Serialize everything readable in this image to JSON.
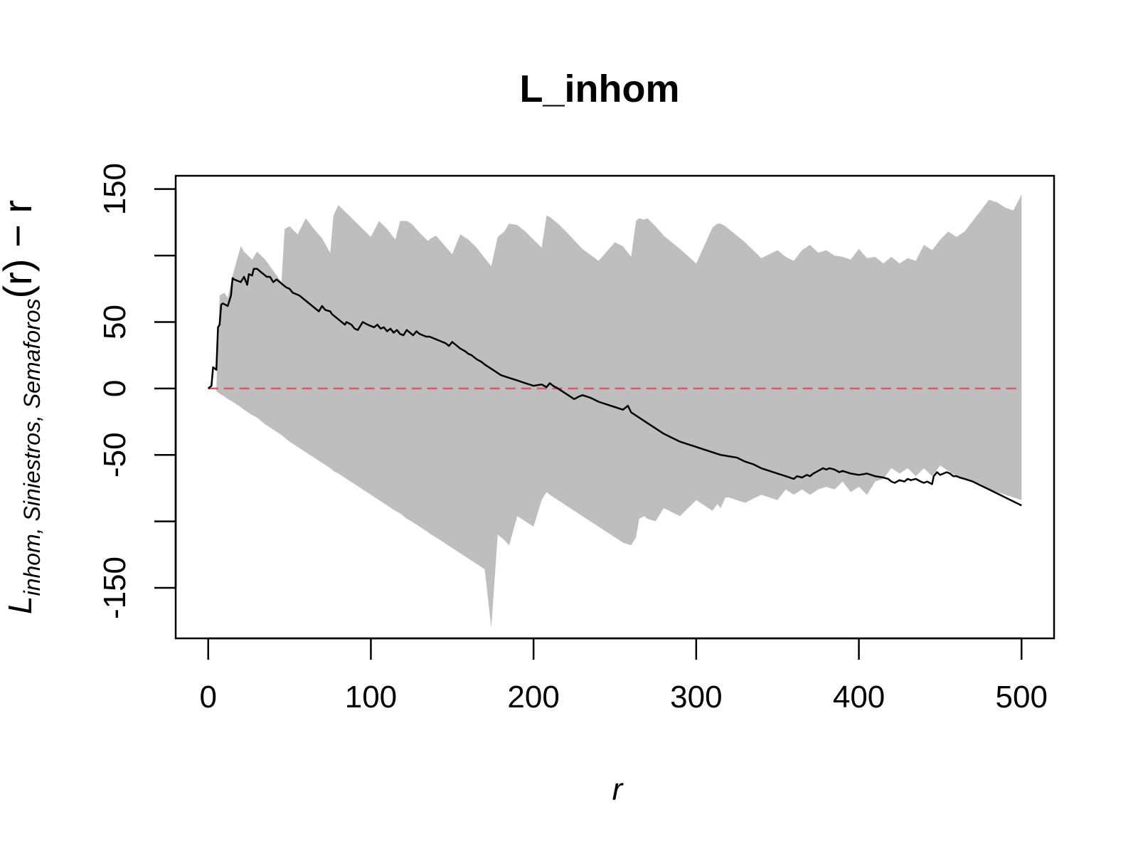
{
  "chart_data": {
    "type": "line",
    "title": "L_inhom",
    "xlabel": "r",
    "ylabel": {
      "main": "L",
      "subscript": "inhom, Siniestros, Semaforos",
      "suffix": "(r) − r"
    },
    "xlim": [
      -20,
      520
    ],
    "ylim": [
      -188,
      160
    ],
    "x_ticks": [
      0,
      100,
      200,
      300,
      400,
      500
    ],
    "x_tick_labels": [
      "0",
      "100",
      "200",
      "300",
      "400",
      "500"
    ],
    "y_ticks": [
      -150,
      -100,
      -50,
      0,
      50,
      100,
      150
    ],
    "y_tick_labels": [
      "-150",
      "",
      "-50",
      "0",
      "50",
      "",
      "150"
    ],
    "grid": false,
    "series": [
      {
        "role": "envelope",
        "color": "#bebebe",
        "x": [
          5,
          7,
          10,
          12,
          15,
          20,
          22,
          27,
          30,
          35,
          45,
          47,
          50,
          55,
          60,
          65,
          70,
          75,
          77,
          80,
          90,
          100,
          105,
          110,
          115,
          118,
          122,
          125,
          130,
          135,
          137,
          140,
          145,
          150,
          155,
          160,
          165,
          170,
          174,
          178,
          182,
          185,
          190,
          195,
          200,
          205,
          208,
          210,
          215,
          220,
          230,
          240,
          250,
          255,
          260,
          263,
          265,
          268,
          270,
          275,
          280,
          290,
          300,
          310,
          313,
          315,
          318,
          320,
          330,
          340,
          350,
          355,
          360,
          365,
          370,
          375,
          380,
          385,
          390,
          395,
          400,
          405,
          410,
          415,
          420,
          425,
          430,
          435,
          440,
          445,
          450,
          455,
          460,
          465,
          470,
          475,
          480,
          485,
          490,
          495,
          500
        ],
        "upper": [
          0,
          70,
          72,
          68,
          85,
          107,
          103,
          97,
          103,
          97,
          80,
          120,
          122,
          116,
          128,
          120,
          113,
          102,
          130,
          138,
          126,
          114,
          126,
          120,
          112,
          126,
          126,
          124,
          117,
          111,
          113,
          115,
          108,
          101,
          116,
          112,
          106,
          98,
          92,
          114,
          118,
          124,
          123,
          118,
          112,
          106,
          130,
          129,
          124,
          118,
          105,
          96,
          110,
          107,
          99,
          126,
          128,
          127,
          128,
          122,
          115,
          105,
          94,
          121,
          124,
          124,
          122,
          120,
          110,
          98,
          104,
          99,
          96,
          104,
          108,
          102,
          104,
          100,
          99,
          97,
          105,
          98,
          99,
          94,
          99,
          94,
          98,
          96,
          108,
          104,
          112,
          118,
          114,
          118,
          126,
          134,
          142,
          140,
          136,
          134,
          146
        ],
        "lower": [
          -2,
          -4,
          -6,
          -8,
          -10,
          -14,
          -16,
          -20,
          -22,
          -27,
          -35,
          -37,
          -40,
          -44,
          -48,
          -52,
          -56,
          -60,
          -62,
          -64,
          -72,
          -80,
          -84,
          -88,
          -92,
          -94,
          -98,
          -100,
          -104,
          -108,
          -110,
          -112,
          -116,
          -120,
          -124,
          -128,
          -132,
          -136,
          -180,
          -110,
          -114,
          -118,
          -96,
          -100,
          -104,
          -84,
          -78,
          -80,
          -84,
          -88,
          -96,
          -104,
          -112,
          -116,
          -118,
          -112,
          -98,
          -96,
          -98,
          -100,
          -90,
          -96,
          -84,
          -92,
          -87,
          -90,
          -82,
          -82,
          -86,
          -80,
          -84,
          -76,
          -80,
          -76,
          -80,
          -76,
          -74,
          -76,
          -70,
          -78,
          -74,
          -80,
          -70,
          -68,
          -60,
          -64,
          -60,
          -66,
          -60,
          -66,
          -58,
          -62,
          -66,
          -68,
          -70,
          -72,
          -76,
          -78,
          -80,
          -82,
          -84
        ]
      },
      {
        "role": "observed",
        "color": "#000000",
        "x": [
          0,
          2,
          3,
          5,
          6,
          7,
          8,
          9,
          12,
          14,
          15,
          16,
          20,
          22,
          24,
          25,
          27,
          28,
          30,
          32,
          34,
          36,
          38,
          40,
          42,
          44,
          46,
          48,
          50,
          52,
          56,
          60,
          64,
          68,
          70,
          72,
          75,
          76,
          80,
          84,
          85,
          88,
          90,
          92,
          95,
          98,
          100,
          102,
          104,
          106,
          108,
          110,
          112,
          114,
          116,
          118,
          120,
          122,
          124,
          126,
          128,
          130,
          132,
          134,
          136,
          138,
          140,
          142,
          144,
          146,
          148,
          150,
          152,
          155,
          158,
          160,
          162,
          165,
          168,
          170,
          175,
          180,
          185,
          190,
          195,
          200,
          205,
          208,
          210,
          212,
          215,
          220,
          225,
          228,
          230,
          235,
          240,
          245,
          250,
          255,
          258,
          260,
          265,
          270,
          275,
          280,
          285,
          290,
          295,
          300,
          305,
          310,
          315,
          320,
          325,
          330,
          335,
          340,
          345,
          350,
          355,
          360,
          362,
          365,
          368,
          370,
          372,
          375,
          378,
          380,
          382,
          385,
          388,
          390,
          395,
          400,
          405,
          410,
          415,
          418,
          420,
          422,
          425,
          428,
          430,
          432,
          435,
          438,
          440,
          442,
          445,
          446,
          448,
          450,
          452,
          454,
          456,
          458,
          460,
          462,
          465,
          470,
          475,
          480,
          485,
          490,
          495,
          500
        ],
        "y": [
          0,
          2,
          16,
          14,
          46,
          48,
          63,
          64,
          62,
          70,
          83,
          82,
          80,
          84,
          78,
          86,
          85,
          90,
          90,
          88,
          86,
          84,
          84,
          80,
          82,
          80,
          78,
          76,
          75,
          72,
          70,
          66,
          62,
          58,
          62,
          59,
          58,
          56,
          52,
          48,
          50,
          48,
          45,
          44,
          50,
          48,
          47,
          46,
          48,
          45,
          46,
          43,
          45,
          42,
          44,
          41,
          40,
          44,
          42,
          40,
          43,
          41,
          40,
          39,
          39,
          38,
          37,
          36,
          35,
          34,
          32,
          35,
          33,
          30,
          28,
          26,
          25,
          22,
          20,
          18,
          14,
          10,
          8,
          6,
          4,
          2,
          3,
          1,
          4,
          2,
          0,
          -4,
          -8,
          -6,
          -5,
          -7,
          -10,
          -12,
          -14,
          -16,
          -13,
          -18,
          -22,
          -26,
          -30,
          -34,
          -37,
          -40,
          -42,
          -44,
          -46,
          -48,
          -50,
          -51,
          -52,
          -55,
          -57,
          -60,
          -62,
          -64,
          -66,
          -68,
          -66,
          -67,
          -65,
          -66,
          -64,
          -62,
          -60,
          -61,
          -60,
          -61,
          -63,
          -62,
          -64,
          -65,
          -64,
          -66,
          -67,
          -68,
          -70,
          -71,
          -69,
          -70,
          -68,
          -69,
          -68,
          -70,
          -71,
          -70,
          -72,
          -66,
          -63,
          -65,
          -64,
          -63,
          -64,
          -66,
          -66,
          -67,
          -68,
          -70,
          -73,
          -76,
          -79,
          -82,
          -85,
          -88
        ]
      },
      {
        "role": "theoretical",
        "color": "#df536b",
        "dashed": true,
        "x": [
          0,
          500
        ],
        "y": [
          0,
          0
        ]
      }
    ]
  }
}
